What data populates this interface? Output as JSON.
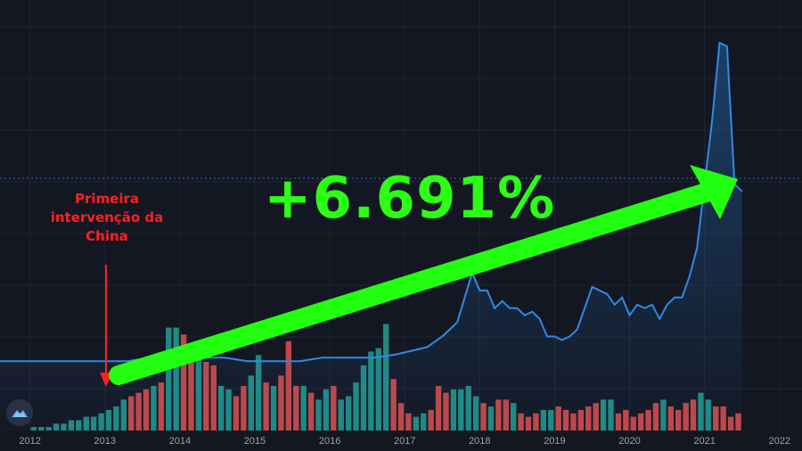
{
  "annotation": {
    "line1": "Primeira",
    "line2": "intervenção da",
    "line3": "China"
  },
  "headline": "+6.691%",
  "colors": {
    "background": "#131722",
    "price_line": "#2f8ae6",
    "volume_up": "#26a69a",
    "volume_down": "#ef5350",
    "arrow": "#22ff11",
    "annotation": "#ff2020"
  },
  "chart_data": {
    "type": "line",
    "x_ticks": [
      "2012",
      "2013",
      "2014",
      "2015",
      "2016",
      "2017",
      "2018",
      "2019",
      "2020",
      "2021",
      "2022"
    ],
    "xlim": [
      2011.6,
      2022.3
    ],
    "price_ylim": [
      0,
      1
    ],
    "volume_ylim": [
      0,
      1
    ],
    "price_series": [
      [
        2011.6,
        0.1
      ],
      [
        2012.0,
        0.1
      ],
      [
        2012.5,
        0.1
      ],
      [
        2013.0,
        0.1
      ],
      [
        2013.3,
        0.1
      ],
      [
        2013.6,
        0.11
      ],
      [
        2013.8,
        0.11
      ],
      [
        2013.9,
        0.12
      ],
      [
        2014.0,
        0.11
      ],
      [
        2014.3,
        0.11
      ],
      [
        2014.6,
        0.11
      ],
      [
        2014.9,
        0.1
      ],
      [
        2015.2,
        0.1
      ],
      [
        2015.6,
        0.1
      ],
      [
        2015.9,
        0.11
      ],
      [
        2016.3,
        0.11
      ],
      [
        2016.6,
        0.11
      ],
      [
        2016.9,
        0.12
      ],
      [
        2017.1,
        0.13
      ],
      [
        2017.3,
        0.14
      ],
      [
        2017.5,
        0.17
      ],
      [
        2017.6,
        0.19
      ],
      [
        2017.7,
        0.21
      ],
      [
        2017.8,
        0.28
      ],
      [
        2017.9,
        0.35
      ],
      [
        2018.0,
        0.3
      ],
      [
        2018.1,
        0.3
      ],
      [
        2018.2,
        0.25
      ],
      [
        2018.3,
        0.27
      ],
      [
        2018.4,
        0.25
      ],
      [
        2018.5,
        0.25
      ],
      [
        2018.6,
        0.23
      ],
      [
        2018.7,
        0.24
      ],
      [
        2018.8,
        0.22
      ],
      [
        2018.9,
        0.17
      ],
      [
        2019.0,
        0.17
      ],
      [
        2019.1,
        0.16
      ],
      [
        2019.2,
        0.17
      ],
      [
        2019.3,
        0.19
      ],
      [
        2019.4,
        0.25
      ],
      [
        2019.5,
        0.31
      ],
      [
        2019.6,
        0.3
      ],
      [
        2019.7,
        0.29
      ],
      [
        2019.8,
        0.26
      ],
      [
        2019.9,
        0.28
      ],
      [
        2020.0,
        0.23
      ],
      [
        2020.1,
        0.26
      ],
      [
        2020.2,
        0.25
      ],
      [
        2020.3,
        0.26
      ],
      [
        2020.4,
        0.22
      ],
      [
        2020.5,
        0.26
      ],
      [
        2020.6,
        0.28
      ],
      [
        2020.7,
        0.28
      ],
      [
        2020.8,
        0.34
      ],
      [
        2020.9,
        0.42
      ],
      [
        2021.0,
        0.6
      ],
      [
        2021.1,
        0.78
      ],
      [
        2021.2,
        1.0
      ],
      [
        2021.3,
        0.99
      ],
      [
        2021.4,
        0.6
      ],
      [
        2021.5,
        0.58
      ]
    ],
    "volume_bars": [
      [
        2012.05,
        0.01,
        "up"
      ],
      [
        2012.15,
        0.01,
        "up"
      ],
      [
        2012.25,
        0.01,
        "up"
      ],
      [
        2012.35,
        0.02,
        "up"
      ],
      [
        2012.45,
        0.02,
        "up"
      ],
      [
        2012.55,
        0.03,
        "up"
      ],
      [
        2012.65,
        0.03,
        "up"
      ],
      [
        2012.75,
        0.04,
        "up"
      ],
      [
        2012.85,
        0.04,
        "up"
      ],
      [
        2012.95,
        0.05,
        "up"
      ],
      [
        2013.05,
        0.06,
        "up"
      ],
      [
        2013.15,
        0.07,
        "up"
      ],
      [
        2013.25,
        0.09,
        "up"
      ],
      [
        2013.35,
        0.1,
        "down"
      ],
      [
        2013.45,
        0.11,
        "down"
      ],
      [
        2013.55,
        0.12,
        "down"
      ],
      [
        2013.65,
        0.13,
        "up"
      ],
      [
        2013.75,
        0.14,
        "down"
      ],
      [
        2013.85,
        0.3,
        "up"
      ],
      [
        2013.95,
        0.3,
        "up"
      ],
      [
        2014.05,
        0.28,
        "down"
      ],
      [
        2014.15,
        0.25,
        "down"
      ],
      [
        2014.25,
        0.23,
        "up"
      ],
      [
        2014.35,
        0.2,
        "down"
      ],
      [
        2014.45,
        0.19,
        "down"
      ],
      [
        2014.55,
        0.13,
        "up"
      ],
      [
        2014.65,
        0.12,
        "up"
      ],
      [
        2014.75,
        0.1,
        "down"
      ],
      [
        2014.85,
        0.13,
        "down"
      ],
      [
        2014.95,
        0.16,
        "up"
      ],
      [
        2015.05,
        0.22,
        "up"
      ],
      [
        2015.15,
        0.14,
        "down"
      ],
      [
        2015.25,
        0.13,
        "up"
      ],
      [
        2015.35,
        0.16,
        "down"
      ],
      [
        2015.45,
        0.26,
        "down"
      ],
      [
        2015.55,
        0.13,
        "down"
      ],
      [
        2015.65,
        0.13,
        "up"
      ],
      [
        2015.75,
        0.11,
        "down"
      ],
      [
        2015.85,
        0.09,
        "up"
      ],
      [
        2015.95,
        0.12,
        "up"
      ],
      [
        2016.05,
        0.13,
        "down"
      ],
      [
        2016.15,
        0.09,
        "up"
      ],
      [
        2016.25,
        0.1,
        "up"
      ],
      [
        2016.35,
        0.14,
        "up"
      ],
      [
        2016.45,
        0.19,
        "up"
      ],
      [
        2016.55,
        0.23,
        "up"
      ],
      [
        2016.65,
        0.24,
        "up"
      ],
      [
        2016.75,
        0.31,
        "up"
      ],
      [
        2016.85,
        0.15,
        "down"
      ],
      [
        2016.95,
        0.08,
        "down"
      ],
      [
        2017.05,
        0.05,
        "down"
      ],
      [
        2017.15,
        0.04,
        "up"
      ],
      [
        2017.25,
        0.05,
        "up"
      ],
      [
        2017.35,
        0.06,
        "down"
      ],
      [
        2017.45,
        0.13,
        "down"
      ],
      [
        2017.55,
        0.11,
        "down"
      ],
      [
        2017.65,
        0.12,
        "up"
      ],
      [
        2017.75,
        0.12,
        "up"
      ],
      [
        2017.85,
        0.13,
        "up"
      ],
      [
        2017.95,
        0.1,
        "up"
      ],
      [
        2018.05,
        0.08,
        "down"
      ],
      [
        2018.15,
        0.07,
        "up"
      ],
      [
        2018.25,
        0.09,
        "down"
      ],
      [
        2018.35,
        0.09,
        "down"
      ],
      [
        2018.45,
        0.08,
        "up"
      ],
      [
        2018.55,
        0.05,
        "down"
      ],
      [
        2018.65,
        0.04,
        "down"
      ],
      [
        2018.75,
        0.05,
        "down"
      ],
      [
        2018.85,
        0.06,
        "up"
      ],
      [
        2018.95,
        0.06,
        "up"
      ],
      [
        2019.05,
        0.07,
        "down"
      ],
      [
        2019.15,
        0.06,
        "down"
      ],
      [
        2019.25,
        0.05,
        "down"
      ],
      [
        2019.35,
        0.06,
        "down"
      ],
      [
        2019.45,
        0.07,
        "down"
      ],
      [
        2019.55,
        0.08,
        "down"
      ],
      [
        2019.65,
        0.09,
        "up"
      ],
      [
        2019.75,
        0.09,
        "up"
      ],
      [
        2019.85,
        0.05,
        "down"
      ],
      [
        2019.95,
        0.06,
        "down"
      ],
      [
        2020.05,
        0.04,
        "down"
      ],
      [
        2020.15,
        0.05,
        "down"
      ],
      [
        2020.25,
        0.06,
        "down"
      ],
      [
        2020.35,
        0.08,
        "down"
      ],
      [
        2020.45,
        0.09,
        "up"
      ],
      [
        2020.55,
        0.07,
        "down"
      ],
      [
        2020.65,
        0.06,
        "down"
      ],
      [
        2020.75,
        0.08,
        "down"
      ],
      [
        2020.85,
        0.09,
        "down"
      ],
      [
        2020.95,
        0.11,
        "up"
      ],
      [
        2021.05,
        0.09,
        "up"
      ],
      [
        2021.15,
        0.07,
        "down"
      ],
      [
        2021.25,
        0.07,
        "down"
      ],
      [
        2021.35,
        0.04,
        "down"
      ],
      [
        2021.45,
        0.05,
        "down"
      ]
    ]
  }
}
